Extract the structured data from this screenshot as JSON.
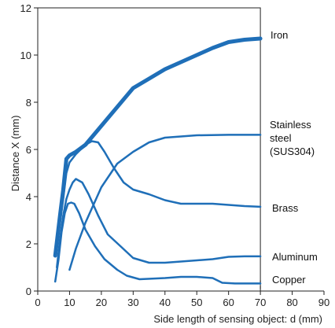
{
  "chart_data": {
    "type": "line",
    "title": "",
    "xlabel": "Side length of sensing object: d (mm)",
    "ylabel": "Distance X (mm)",
    "xlim": [
      0,
      90
    ],
    "ylim": [
      0,
      12
    ],
    "x_plot_max": 70,
    "xticks": [
      0,
      10,
      20,
      30,
      40,
      50,
      60,
      70,
      80,
      90
    ],
    "yticks": [
      0,
      2,
      4,
      6,
      8,
      10,
      12
    ],
    "grid": false,
    "line_color": "#1f6fb8",
    "series": [
      {
        "name": "Iron",
        "bold": true,
        "points": [
          [
            5.5,
            1.5
          ],
          [
            7,
            3.2
          ],
          [
            8,
            4.3
          ],
          [
            9,
            5.6
          ],
          [
            10,
            5.75
          ],
          [
            12,
            5.9
          ],
          [
            15,
            6.2
          ],
          [
            20,
            7.0
          ],
          [
            25,
            7.8
          ],
          [
            30,
            8.6
          ],
          [
            35,
            9.0
          ],
          [
            40,
            9.4
          ],
          [
            45,
            9.7
          ],
          [
            50,
            10.0
          ],
          [
            55,
            10.3
          ],
          [
            60,
            10.55
          ],
          [
            65,
            10.65
          ],
          [
            70,
            10.7
          ]
        ]
      },
      {
        "name": "Stainless steel (SUS304)",
        "label_lines": [
          "Stainless",
          "steel",
          "(SUS304)"
        ],
        "points": [
          [
            10,
            0.9
          ],
          [
            12,
            1.8
          ],
          [
            15,
            2.9
          ],
          [
            20,
            4.4
          ],
          [
            25,
            5.4
          ],
          [
            30,
            5.9
          ],
          [
            35,
            6.3
          ],
          [
            40,
            6.5
          ],
          [
            50,
            6.6
          ],
          [
            60,
            6.62
          ],
          [
            70,
            6.62
          ]
        ]
      },
      {
        "name": "Brass",
        "points": [
          [
            5.5,
            1.5
          ],
          [
            7,
            2.9
          ],
          [
            8,
            3.9
          ],
          [
            9,
            5.0
          ],
          [
            10,
            5.45
          ],
          [
            12,
            5.8
          ],
          [
            15,
            6.2
          ],
          [
            17,
            6.35
          ],
          [
            19,
            6.3
          ],
          [
            21,
            5.9
          ],
          [
            24,
            5.2
          ],
          [
            27,
            4.6
          ],
          [
            30,
            4.3
          ],
          [
            35,
            4.1
          ],
          [
            40,
            3.85
          ],
          [
            45,
            3.7
          ],
          [
            50,
            3.7
          ],
          [
            55,
            3.7
          ],
          [
            60,
            3.65
          ],
          [
            65,
            3.6
          ],
          [
            70,
            3.57
          ]
        ]
      },
      {
        "name": "Aluminum",
        "points": [
          [
            6,
            1.0
          ],
          [
            7,
            2.2
          ],
          [
            8,
            3.2
          ],
          [
            9,
            3.9
          ],
          [
            10,
            4.3
          ],
          [
            11,
            4.6
          ],
          [
            12,
            4.75
          ],
          [
            14,
            4.6
          ],
          [
            16,
            4.1
          ],
          [
            19,
            3.2
          ],
          [
            22,
            2.4
          ],
          [
            26,
            1.9
          ],
          [
            30,
            1.4
          ],
          [
            35,
            1.2
          ],
          [
            40,
            1.2
          ],
          [
            45,
            1.25
          ],
          [
            50,
            1.3
          ],
          [
            55,
            1.35
          ],
          [
            60,
            1.45
          ],
          [
            65,
            1.47
          ],
          [
            70,
            1.47
          ]
        ]
      },
      {
        "name": "Copper",
        "points": [
          [
            5.5,
            0.4
          ],
          [
            6.5,
            1.3
          ],
          [
            7.5,
            2.5
          ],
          [
            8.5,
            3.3
          ],
          [
            9.5,
            3.7
          ],
          [
            10.5,
            3.75
          ],
          [
            11.5,
            3.7
          ],
          [
            13,
            3.3
          ],
          [
            15,
            2.6
          ],
          [
            18,
            1.9
          ],
          [
            21,
            1.35
          ],
          [
            25,
            0.9
          ],
          [
            28,
            0.65
          ],
          [
            32,
            0.5
          ],
          [
            40,
            0.55
          ],
          [
            45,
            0.6
          ],
          [
            50,
            0.6
          ],
          [
            55,
            0.55
          ],
          [
            58,
            0.35
          ],
          [
            62,
            0.32
          ],
          [
            70,
            0.32
          ]
        ]
      }
    ]
  }
}
